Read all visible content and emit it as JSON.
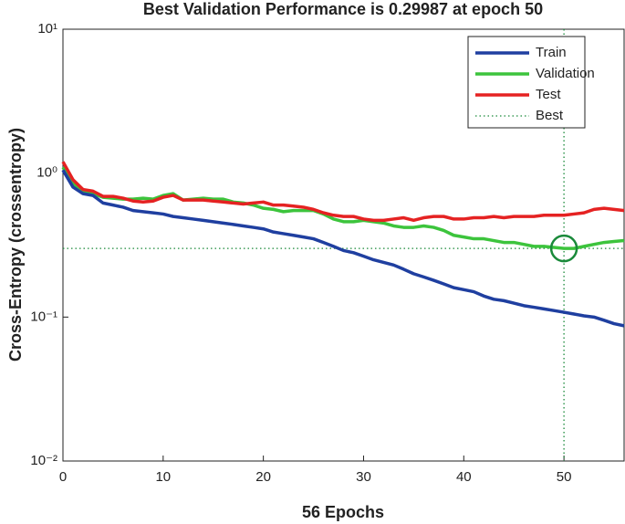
{
  "chart_data": {
    "type": "line",
    "title": "Best Validation Performance is 0.29987 at epoch 50",
    "x_label": "56 Epochs",
    "y_label": "Cross-Entropy  (crossentropy)",
    "x": [
      0,
      1,
      2,
      3,
      4,
      5,
      6,
      7,
      8,
      9,
      10,
      11,
      12,
      13,
      14,
      15,
      16,
      17,
      18,
      19,
      20,
      21,
      22,
      23,
      24,
      25,
      26,
      27,
      28,
      29,
      30,
      31,
      32,
      33,
      34,
      35,
      36,
      37,
      38,
      39,
      40,
      41,
      42,
      43,
      44,
      45,
      46,
      47,
      48,
      49,
      50,
      51,
      52,
      53,
      54,
      55,
      56
    ],
    "series": [
      {
        "name": "Train",
        "color": "#1f3fa0",
        "values": [
          1.05,
          0.8,
          0.72,
          0.7,
          0.62,
          0.6,
          0.58,
          0.55,
          0.54,
          0.53,
          0.52,
          0.5,
          0.49,
          0.48,
          0.47,
          0.46,
          0.45,
          0.44,
          0.43,
          0.42,
          0.41,
          0.39,
          0.38,
          0.37,
          0.36,
          0.35,
          0.33,
          0.31,
          0.29,
          0.28,
          0.265,
          0.25,
          0.24,
          0.23,
          0.215,
          0.2,
          0.19,
          0.18,
          0.17,
          0.16,
          0.155,
          0.15,
          0.14,
          0.133,
          0.13,
          0.125,
          0.12,
          0.117,
          0.114,
          0.111,
          0.108,
          0.105,
          0.102,
          0.1,
          0.095,
          0.09,
          0.087
        ]
      },
      {
        "name": "Validation",
        "color": "#3cc43c",
        "values": [
          1.1,
          0.85,
          0.75,
          0.72,
          0.68,
          0.67,
          0.66,
          0.66,
          0.67,
          0.66,
          0.7,
          0.72,
          0.65,
          0.66,
          0.67,
          0.66,
          0.66,
          0.63,
          0.62,
          0.6,
          0.57,
          0.56,
          0.54,
          0.55,
          0.55,
          0.55,
          0.52,
          0.48,
          0.46,
          0.46,
          0.47,
          0.46,
          0.45,
          0.43,
          0.42,
          0.42,
          0.43,
          0.42,
          0.4,
          0.37,
          0.36,
          0.35,
          0.35,
          0.34,
          0.33,
          0.33,
          0.32,
          0.31,
          0.31,
          0.305,
          0.29987,
          0.3,
          0.31,
          0.32,
          0.33,
          0.335,
          0.34
        ]
      },
      {
        "name": "Test",
        "color": "#e52222",
        "values": [
          1.2,
          0.9,
          0.77,
          0.75,
          0.69,
          0.69,
          0.67,
          0.64,
          0.63,
          0.64,
          0.68,
          0.7,
          0.65,
          0.65,
          0.65,
          0.64,
          0.63,
          0.62,
          0.61,
          0.62,
          0.63,
          0.6,
          0.6,
          0.59,
          0.58,
          0.56,
          0.53,
          0.51,
          0.5,
          0.5,
          0.48,
          0.47,
          0.47,
          0.48,
          0.49,
          0.47,
          0.49,
          0.5,
          0.5,
          0.48,
          0.48,
          0.49,
          0.49,
          0.5,
          0.49,
          0.5,
          0.5,
          0.5,
          0.51,
          0.51,
          0.51,
          0.52,
          0.53,
          0.56,
          0.57,
          0.56,
          0.55
        ]
      }
    ],
    "best": {
      "name": "Best",
      "x": 50,
      "y": 0.29987,
      "color": "#1a8a3a"
    },
    "xlim": [
      0,
      56
    ],
    "xticks": [
      0,
      10,
      20,
      30,
      40,
      50
    ],
    "ylim": [
      0.01,
      10
    ],
    "y_scale": "log",
    "yticks": [
      {
        "value": 0.01,
        "label": "10⁻²"
      },
      {
        "value": 0.1,
        "label": "10⁻¹"
      },
      {
        "value": 1,
        "label": "10⁰"
      },
      {
        "value": 10,
        "label": "10¹"
      }
    ],
    "legend": "upper right"
  }
}
